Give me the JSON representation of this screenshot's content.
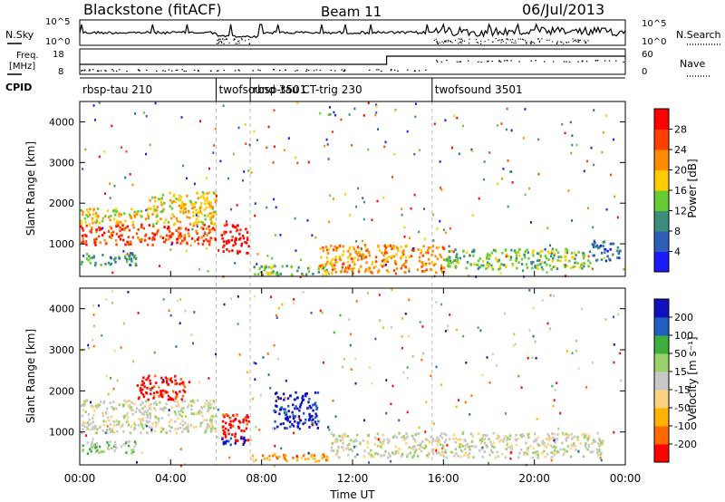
{
  "header": {
    "station": "Blackstone (fitACF)",
    "beam": "Beam 11",
    "date": "06/Jul/2013"
  },
  "strip_panels": {
    "nsky_label": "N.Sky",
    "nsky_ticks": [
      "10^5",
      "10^0"
    ],
    "nsearch_label": "N.Search",
    "nsearch_ticks": [
      "10^5",
      "10^0"
    ],
    "freq_label_1": "Freq.",
    "freq_label_2": "[MHz]",
    "freq_ticks": [
      "18",
      "8"
    ],
    "nave_label": "Nave",
    "nave_ticks": [
      "60",
      "0"
    ],
    "cpid_label": "CPID"
  },
  "cpid_segments": [
    {
      "label": "rbsp-tau 210",
      "start_hour": 0.0
    },
    {
      "label": "twofsound 3501",
      "start_hour": 6.0
    },
    {
      "label": "rbsp-tau CT-trig 230",
      "start_hour": 7.5
    },
    {
      "label": "twofsound 3501",
      "start_hour": 15.5
    }
  ],
  "chart_data": [
    {
      "type": "heatmap",
      "name": "power",
      "xlabel": "",
      "ylabel": "Slant Range [km]",
      "xlim": [
        0,
        24
      ],
      "ylim": [
        200,
        4500
      ],
      "y_ticks": [
        "1000",
        "2000",
        "3000",
        "4000"
      ],
      "colorbar_label": "Power [dB]",
      "colorbar_ticks": [
        "4",
        "8",
        "12",
        "16",
        "20",
        "24",
        "28"
      ],
      "colors": [
        "#1a1aff",
        "#2e5fb8",
        "#3b8f7a",
        "#66cc33",
        "#ffcc00",
        "#ff8c00",
        "#ff4000",
        "#ff0000"
      ],
      "regions": [
        {
          "t": [
            0.0,
            6.0
          ],
          "r": [
            1000,
            1500
          ],
          "level": 6
        },
        {
          "t": [
            0.0,
            6.0
          ],
          "r": [
            1500,
            1900
          ],
          "level": 4
        },
        {
          "t": [
            3.0,
            6.0
          ],
          "r": [
            1900,
            2300
          ],
          "level": 4
        },
        {
          "t": [
            0.0,
            2.5
          ],
          "r": [
            500,
            800
          ],
          "level": 2
        },
        {
          "t": [
            6.2,
            7.4
          ],
          "r": [
            800,
            1500
          ],
          "level": 7
        },
        {
          "t": [
            7.5,
            11.0
          ],
          "r": [
            250,
            500
          ],
          "level": 3
        },
        {
          "t": [
            10.5,
            16.0
          ],
          "r": [
            300,
            1000
          ],
          "level": 5
        },
        {
          "t": [
            16.0,
            22.5
          ],
          "r": [
            400,
            900
          ],
          "level": 3
        },
        {
          "t": [
            22.5,
            23.8
          ],
          "r": [
            600,
            1100
          ],
          "level": 1
        }
      ]
    },
    {
      "type": "heatmap",
      "name": "velocity",
      "xlabel": "Time UT",
      "ylabel": "Slant Range [km]",
      "xlim": [
        0,
        24
      ],
      "ylim": [
        200,
        4500
      ],
      "y_ticks": [
        "1000",
        "2000",
        "3000",
        "4000"
      ],
      "x_ticks": [
        "00:00",
        "04:00",
        "08:00",
        "12:00",
        "16:00",
        "20:00",
        "00:00"
      ],
      "colorbar_label": "Velocity [m s⁻¹]",
      "colorbar_ticks": [
        "-200",
        "-100",
        "-50",
        "-15",
        "15",
        "50",
        "100",
        "200"
      ],
      "colors": [
        "#ff0000",
        "#ff6a00",
        "#ffb300",
        "#ffd27f",
        "#c8c8c8",
        "#9ad26a",
        "#3fae3f",
        "#2060c0",
        "#1010c0"
      ],
      "regions": [
        {
          "t": [
            0.0,
            6.0
          ],
          "r": [
            1000,
            1800
          ],
          "level": 4
        },
        {
          "t": [
            2.5,
            4.8
          ],
          "r": [
            1800,
            2400
          ],
          "level": 0
        },
        {
          "t": [
            6.2,
            7.4
          ],
          "r": [
            800,
            1500
          ],
          "level": 0
        },
        {
          "t": [
            6.2,
            7.4
          ],
          "r": [
            700,
            900
          ],
          "level": 8
        },
        {
          "t": [
            8.5,
            10.5
          ],
          "r": [
            1100,
            2000
          ],
          "level": 8
        },
        {
          "t": [
            7.5,
            11.0
          ],
          "r": [
            300,
            500
          ],
          "level": 2
        },
        {
          "t": [
            11.0,
            23.0
          ],
          "r": [
            400,
            1000
          ],
          "level": 4
        },
        {
          "t": [
            0.0,
            2.5
          ],
          "r": [
            500,
            800
          ],
          "level": 5
        }
      ]
    }
  ]
}
